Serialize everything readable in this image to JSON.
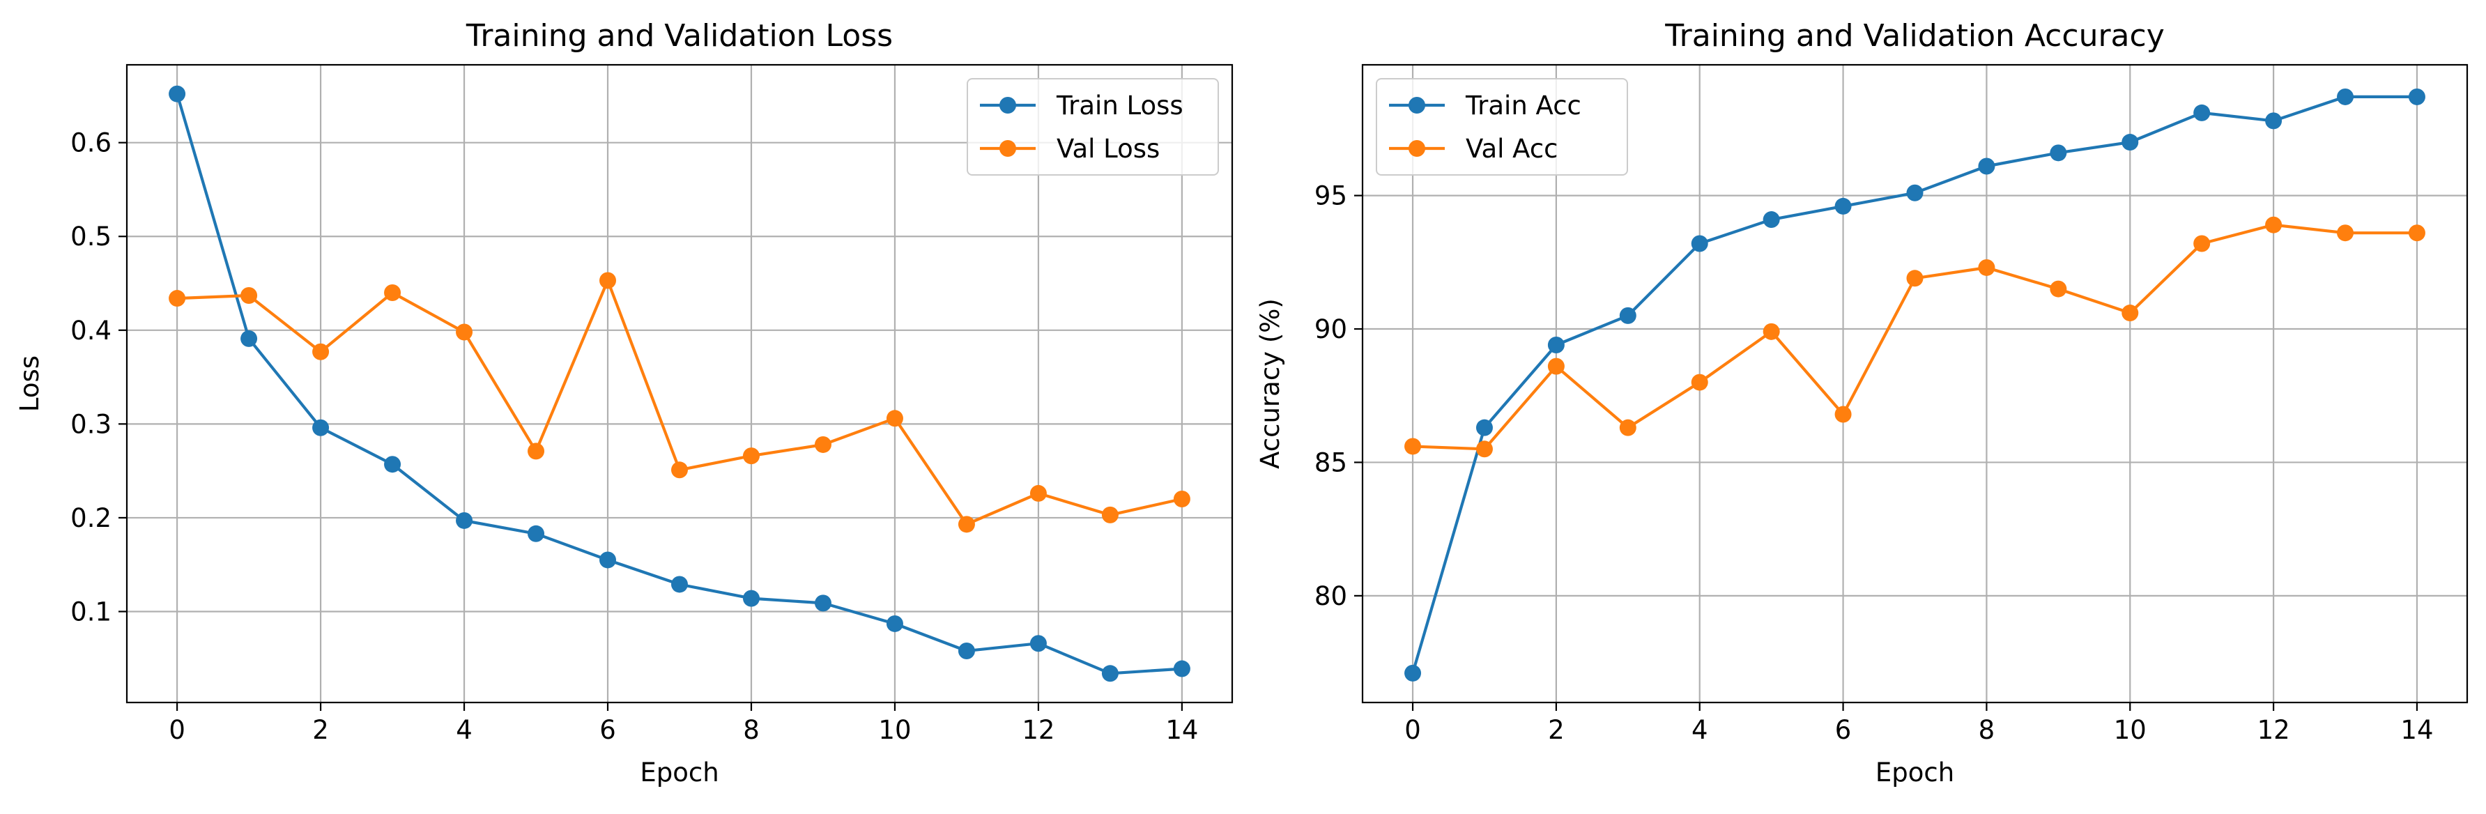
{
  "colors": {
    "train": "#1f77b4",
    "val": "#ff7f0e"
  },
  "chart_data": [
    {
      "type": "line",
      "title": "Training and Validation Loss",
      "xlabel": "Epoch",
      "ylabel": "Loss",
      "x": [
        0,
        1,
        2,
        3,
        4,
        5,
        6,
        7,
        8,
        9,
        10,
        11,
        12,
        13,
        14
      ],
      "xlim": [
        -0.7,
        14.7
      ],
      "ylim": [
        0.003,
        0.683
      ],
      "xticks": [
        0,
        2,
        4,
        6,
        8,
        10,
        12,
        14
      ],
      "yticks": [
        0.1,
        0.2,
        0.3,
        0.4,
        0.5,
        0.6
      ],
      "ytick_labels": [
        "0.1",
        "0.2",
        "0.3",
        "0.4",
        "0.5",
        "0.6"
      ],
      "grid": true,
      "legend_position": "upper right",
      "series": [
        {
          "name": "Train Loss",
          "color": "#1f77b4",
          "values": [
            0.652,
            0.391,
            0.296,
            0.257,
            0.197,
            0.183,
            0.155,
            0.129,
            0.114,
            0.109,
            0.087,
            0.058,
            0.066,
            0.034,
            0.039
          ]
        },
        {
          "name": "Val Loss",
          "color": "#ff7f0e",
          "values": [
            0.434,
            0.437,
            0.377,
            0.44,
            0.398,
            0.271,
            0.453,
            0.251,
            0.266,
            0.278,
            0.306,
            0.193,
            0.226,
            0.203,
            0.22
          ]
        }
      ]
    },
    {
      "type": "line",
      "title": "Training and Validation Accuracy",
      "xlabel": "Epoch",
      "ylabel": "Accuracy (%)",
      "x": [
        0,
        1,
        2,
        3,
        4,
        5,
        6,
        7,
        8,
        9,
        10,
        11,
        12,
        13,
        14
      ],
      "xlim": [
        -0.7,
        14.7
      ],
      "ylim": [
        76.0,
        99.9
      ],
      "xticks": [
        0,
        2,
        4,
        6,
        8,
        10,
        12,
        14
      ],
      "yticks": [
        80,
        85,
        90,
        95
      ],
      "ytick_labels": [
        "80",
        "85",
        "90",
        "95"
      ],
      "grid": true,
      "legend_position": "upper left",
      "series": [
        {
          "name": "Train Acc",
          "color": "#1f77b4",
          "values": [
            77.1,
            86.3,
            89.4,
            90.5,
            93.2,
            94.1,
            94.6,
            95.1,
            96.1,
            96.6,
            97.0,
            98.1,
            97.8,
            98.7,
            98.7
          ]
        },
        {
          "name": "Val Acc",
          "color": "#ff7f0e",
          "values": [
            85.6,
            85.5,
            88.6,
            86.3,
            88.0,
            89.9,
            86.8,
            91.9,
            92.3,
            91.5,
            90.6,
            93.2,
            93.9,
            93.6,
            93.6
          ]
        }
      ]
    }
  ]
}
